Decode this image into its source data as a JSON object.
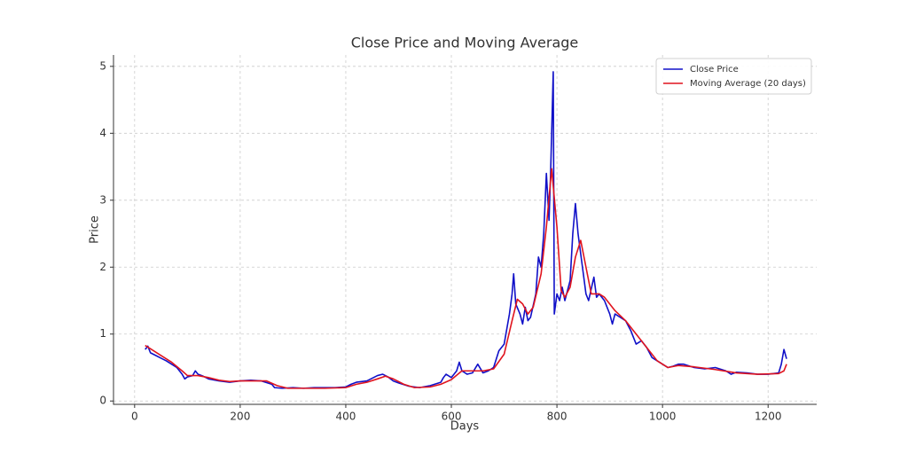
{
  "chart_data": {
    "type": "line",
    "title": "Close Price and Moving Average",
    "xlabel": "Days",
    "ylabel": "Price",
    "xlim": [
      -40,
      1292
    ],
    "ylim": [
      -0.05,
      5.17
    ],
    "xticks": [
      0,
      200,
      400,
      600,
      800,
      1000,
      1200
    ],
    "yticks": [
      0,
      1,
      2,
      3,
      4,
      5
    ],
    "grid": true,
    "legend": "upper right",
    "series": [
      {
        "name": "Close Price",
        "color": "#1010c8",
        "x": [
          20,
          25,
          30,
          40,
          50,
          60,
          70,
          80,
          90,
          95,
          100,
          110,
          115,
          120,
          130,
          140,
          160,
          180,
          200,
          220,
          240,
          260,
          265,
          280,
          300,
          320,
          340,
          360,
          380,
          400,
          410,
          420,
          440,
          460,
          470,
          480,
          490,
          500,
          520,
          540,
          560,
          580,
          585,
          590,
          600,
          610,
          615,
          620,
          630,
          640,
          650,
          660,
          670,
          680,
          690,
          700,
          710,
          715,
          718,
          722,
          730,
          735,
          740,
          745,
          750,
          760,
          765,
          770,
          775,
          780,
          785,
          788,
          793,
          795,
          800,
          805,
          810,
          815,
          825,
          830,
          835,
          840,
          845,
          850,
          855,
          860,
          870,
          875,
          880,
          890,
          900,
          905,
          910,
          920,
          930,
          940,
          945,
          950,
          960,
          970,
          980,
          990,
          1000,
          1010,
          1020,
          1030,
          1040,
          1060,
          1080,
          1100,
          1120,
          1130,
          1140,
          1160,
          1180,
          1200,
          1220,
          1225,
          1230,
          1235
        ],
        "values": [
          0.77,
          0.82,
          0.72,
          0.68,
          0.64,
          0.6,
          0.55,
          0.5,
          0.4,
          0.33,
          0.36,
          0.38,
          0.45,
          0.4,
          0.37,
          0.33,
          0.3,
          0.28,
          0.3,
          0.31,
          0.3,
          0.25,
          0.2,
          0.19,
          0.2,
          0.19,
          0.2,
          0.2,
          0.2,
          0.21,
          0.25,
          0.28,
          0.3,
          0.38,
          0.4,
          0.36,
          0.3,
          0.27,
          0.22,
          0.2,
          0.23,
          0.28,
          0.35,
          0.4,
          0.35,
          0.45,
          0.58,
          0.45,
          0.4,
          0.42,
          0.55,
          0.42,
          0.45,
          0.5,
          0.75,
          0.85,
          1.3,
          1.6,
          1.9,
          1.45,
          1.3,
          1.15,
          1.4,
          1.2,
          1.25,
          1.6,
          2.15,
          2.0,
          2.5,
          3.4,
          2.7,
          3.4,
          4.92,
          1.3,
          1.6,
          1.5,
          1.7,
          1.5,
          1.8,
          2.5,
          2.95,
          2.5,
          2.2,
          1.9,
          1.6,
          1.5,
          1.85,
          1.55,
          1.6,
          1.5,
          1.3,
          1.15,
          1.3,
          1.25,
          1.2,
          1.05,
          0.95,
          0.85,
          0.9,
          0.8,
          0.65,
          0.6,
          0.55,
          0.5,
          0.52,
          0.55,
          0.55,
          0.5,
          0.48,
          0.5,
          0.45,
          0.4,
          0.43,
          0.42,
          0.4,
          0.4,
          0.42,
          0.55,
          0.77,
          0.63
        ]
      },
      {
        "name": "Moving Average (20 days)",
        "color": "#e0141e",
        "x": [
          20,
          30,
          50,
          70,
          90,
          100,
          120,
          140,
          160,
          180,
          200,
          220,
          250,
          270,
          290,
          320,
          360,
          400,
          420,
          440,
          460,
          475,
          490,
          510,
          530,
          560,
          580,
          600,
          620,
          640,
          660,
          680,
          700,
          715,
          725,
          735,
          745,
          755,
          770,
          780,
          790,
          800,
          808,
          815,
          825,
          835,
          845,
          855,
          865,
          880,
          890,
          910,
          930,
          950,
          970,
          990,
          1010,
          1030,
          1060,
          1100,
          1140,
          1180,
          1220,
          1230,
          1235
        ],
        "values": [
          0.83,
          0.78,
          0.68,
          0.58,
          0.45,
          0.38,
          0.38,
          0.35,
          0.31,
          0.29,
          0.3,
          0.3,
          0.3,
          0.23,
          0.19,
          0.19,
          0.19,
          0.2,
          0.25,
          0.28,
          0.33,
          0.37,
          0.33,
          0.25,
          0.2,
          0.21,
          0.25,
          0.32,
          0.45,
          0.45,
          0.45,
          0.48,
          0.7,
          1.2,
          1.52,
          1.45,
          1.3,
          1.4,
          1.9,
          2.6,
          3.47,
          2.6,
          1.65,
          1.55,
          1.7,
          2.15,
          2.4,
          2.0,
          1.6,
          1.6,
          1.55,
          1.35,
          1.2,
          1.0,
          0.8,
          0.6,
          0.5,
          0.53,
          0.51,
          0.47,
          0.42,
          0.4,
          0.41,
          0.45,
          0.55
        ]
      }
    ]
  }
}
